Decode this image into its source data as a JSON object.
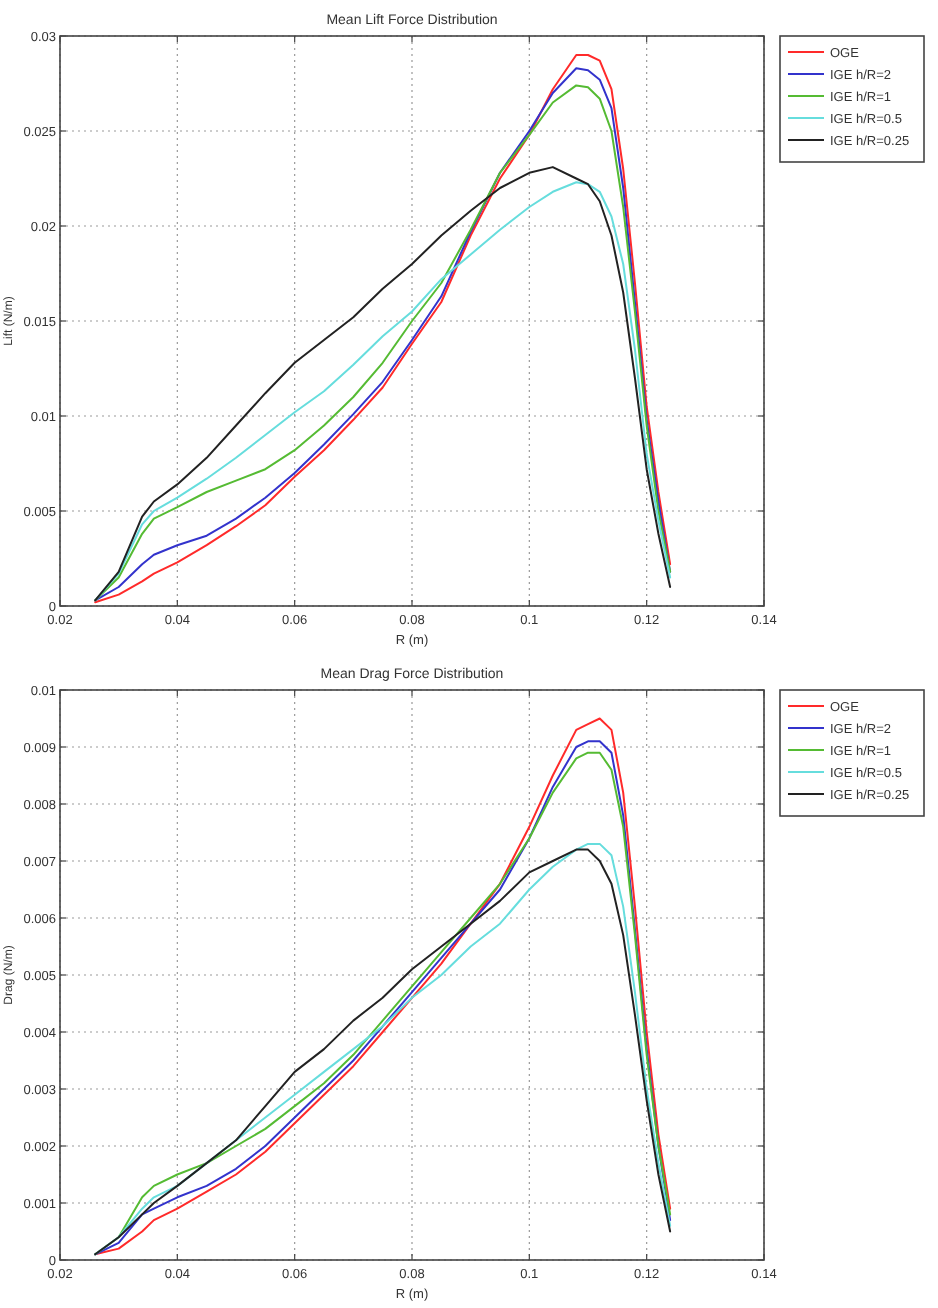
{
  "chart_data": [
    {
      "type": "line",
      "title": "Mean Lift Force Distribution",
      "xlabel": "R (m)",
      "ylabel": "Lift (N/m)",
      "x": [
        0.026,
        0.03,
        0.034,
        0.036,
        0.04,
        0.045,
        0.05,
        0.055,
        0.06,
        0.065,
        0.07,
        0.075,
        0.08,
        0.085,
        0.09,
        0.095,
        0.1,
        0.104,
        0.108,
        0.11,
        0.112,
        0.114,
        0.116,
        0.118,
        0.12,
        0.122,
        0.124
      ],
      "xlim": [
        0.02,
        0.14
      ],
      "xticks": [
        0.02,
        0.04,
        0.06,
        0.08,
        0.1,
        0.12,
        0.14
      ],
      "ylim": [
        0,
        0.03
      ],
      "yticks": [
        0,
        0.005,
        0.01,
        0.015,
        0.02,
        0.025,
        0.03
      ],
      "grid": true,
      "legend": "right",
      "line_style": "solid",
      "series": [
        {
          "name": "OGE",
          "color": "#ff2a2a",
          "values": [
            0.0002,
            0.0006,
            0.0013,
            0.0017,
            0.0023,
            0.0032,
            0.0042,
            0.0053,
            0.0068,
            0.0082,
            0.0098,
            0.0115,
            0.0138,
            0.016,
            0.0195,
            0.0225,
            0.0248,
            0.0272,
            0.029,
            0.029,
            0.0287,
            0.0272,
            0.023,
            0.017,
            0.0105,
            0.006,
            0.0022
          ]
        },
        {
          "name": "IGE h/R=2",
          "color": "#3333cc",
          "values": [
            0.0003,
            0.001,
            0.0022,
            0.0027,
            0.0032,
            0.0037,
            0.0046,
            0.0057,
            0.007,
            0.0085,
            0.0101,
            0.0118,
            0.014,
            0.0163,
            0.0197,
            0.0228,
            0.025,
            0.027,
            0.0283,
            0.0282,
            0.0277,
            0.0262,
            0.022,
            0.016,
            0.0098,
            0.0055,
            0.0018
          ]
        },
        {
          "name": "IGE h/R=1",
          "color": "#55bb33",
          "values": [
            0.0003,
            0.0015,
            0.0038,
            0.0046,
            0.0052,
            0.006,
            0.0066,
            0.0072,
            0.0082,
            0.0095,
            0.011,
            0.0128,
            0.015,
            0.017,
            0.0198,
            0.0228,
            0.0248,
            0.0265,
            0.0274,
            0.0273,
            0.0267,
            0.025,
            0.021,
            0.0155,
            0.0095,
            0.005,
            0.0018
          ]
        },
        {
          "name": "IGE h/R=0.5",
          "color": "#66dddd",
          "values": [
            0.0003,
            0.0017,
            0.0043,
            0.005,
            0.0057,
            0.0067,
            0.0078,
            0.009,
            0.0102,
            0.0113,
            0.0127,
            0.0142,
            0.0155,
            0.0172,
            0.0185,
            0.0198,
            0.021,
            0.0218,
            0.0223,
            0.0222,
            0.0218,
            0.0205,
            0.018,
            0.0135,
            0.008,
            0.0045,
            0.0015
          ]
        },
        {
          "name": "IGE h/R=0.25",
          "color": "#222222",
          "values": [
            0.0003,
            0.0018,
            0.0047,
            0.0055,
            0.0064,
            0.0078,
            0.0095,
            0.0112,
            0.0128,
            0.014,
            0.0152,
            0.0167,
            0.018,
            0.0195,
            0.0208,
            0.022,
            0.0228,
            0.0231,
            0.0225,
            0.0222,
            0.0213,
            0.0195,
            0.0165,
            0.012,
            0.0072,
            0.0038,
            0.001
          ]
        }
      ]
    },
    {
      "type": "line",
      "title": "Mean Drag Force Distribution",
      "xlabel": "R (m)",
      "ylabel": "Drag (N/m)",
      "x": [
        0.026,
        0.03,
        0.034,
        0.036,
        0.04,
        0.045,
        0.05,
        0.055,
        0.06,
        0.065,
        0.07,
        0.075,
        0.08,
        0.085,
        0.09,
        0.095,
        0.1,
        0.104,
        0.108,
        0.11,
        0.112,
        0.114,
        0.116,
        0.118,
        0.12,
        0.122,
        0.124
      ],
      "xlim": [
        0.02,
        0.14
      ],
      "xticks": [
        0.02,
        0.04,
        0.06,
        0.08,
        0.1,
        0.12,
        0.14
      ],
      "ylim": [
        0,
        0.01
      ],
      "yticks": [
        0,
        0.001,
        0.002,
        0.003,
        0.004,
        0.005,
        0.006,
        0.007,
        0.008,
        0.009,
        0.01
      ],
      "grid": true,
      "legend": "right",
      "line_style": "solid",
      "series": [
        {
          "name": "OGE",
          "color": "#ff2a2a",
          "values": [
            0.0001,
            0.0002,
            0.0005,
            0.0007,
            0.0009,
            0.0012,
            0.0015,
            0.0019,
            0.0024,
            0.0029,
            0.0034,
            0.004,
            0.0046,
            0.0052,
            0.0059,
            0.0066,
            0.0076,
            0.0085,
            0.0093,
            0.0094,
            0.0095,
            0.0093,
            0.0082,
            0.0062,
            0.004,
            0.0022,
            0.0009
          ]
        },
        {
          "name": "IGE h/R=2",
          "color": "#3333cc",
          "values": [
            0.0001,
            0.0003,
            0.0008,
            0.0009,
            0.0011,
            0.0013,
            0.0016,
            0.002,
            0.0025,
            0.003,
            0.0035,
            0.0041,
            0.0047,
            0.0053,
            0.0059,
            0.0065,
            0.0074,
            0.0083,
            0.009,
            0.0091,
            0.0091,
            0.0089,
            0.0078,
            0.0058,
            0.0037,
            0.002,
            0.0007
          ]
        },
        {
          "name": "IGE h/R=1",
          "color": "#55bb33",
          "values": [
            0.0001,
            0.0004,
            0.0011,
            0.0013,
            0.0015,
            0.0017,
            0.002,
            0.0023,
            0.0027,
            0.0031,
            0.0036,
            0.0042,
            0.0048,
            0.0054,
            0.006,
            0.0066,
            0.0074,
            0.0082,
            0.0088,
            0.0089,
            0.0089,
            0.0086,
            0.0076,
            0.0057,
            0.0036,
            0.002,
            0.0008
          ]
        },
        {
          "name": "IGE h/R=0.5",
          "color": "#66dddd",
          "values": [
            0.0001,
            0.0004,
            0.0009,
            0.0011,
            0.0013,
            0.0017,
            0.0021,
            0.0025,
            0.0029,
            0.0033,
            0.0037,
            0.0041,
            0.0046,
            0.005,
            0.0055,
            0.0059,
            0.0065,
            0.0069,
            0.0072,
            0.0073,
            0.0073,
            0.0071,
            0.0062,
            0.0047,
            0.003,
            0.0017,
            0.0006
          ]
        },
        {
          "name": "IGE h/R=0.25",
          "color": "#222222",
          "values": [
            0.0001,
            0.0004,
            0.0008,
            0.001,
            0.0013,
            0.0017,
            0.0021,
            0.0027,
            0.0033,
            0.0037,
            0.0042,
            0.0046,
            0.0051,
            0.0055,
            0.0059,
            0.0063,
            0.0068,
            0.007,
            0.0072,
            0.0072,
            0.007,
            0.0066,
            0.0057,
            0.0043,
            0.0028,
            0.0015,
            0.0005
          ]
        }
      ]
    }
  ]
}
